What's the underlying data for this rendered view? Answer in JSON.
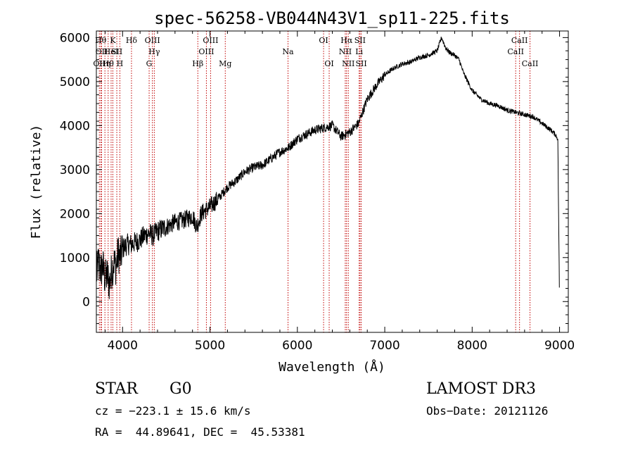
{
  "chart_data": {
    "type": "line",
    "title": "spec-56258-VB044N43V1_sp11-225.fits",
    "xlabel": "Wavelength (Å)",
    "ylabel": "Flux (relative)",
    "xlim": [
      3700,
      9100
    ],
    "ylim": [
      -700,
      6150
    ],
    "xticks": [
      4000,
      5000,
      6000,
      7000,
      8000,
      9000
    ],
    "yticks": [
      0,
      1000,
      2000,
      3000,
      4000,
      5000,
      6000
    ],
    "series": [
      {
        "name": "flux",
        "x": [
          3700,
          3725,
          3750,
          3775,
          3800,
          3825,
          3850,
          3875,
          3900,
          3925,
          3950,
          3975,
          4000,
          4050,
          4100,
          4150,
          4200,
          4250,
          4300,
          4350,
          4400,
          4500,
          4600,
          4700,
          4800,
          4850,
          4900,
          5000,
          5100,
          5200,
          5300,
          5400,
          5500,
          5600,
          5700,
          5800,
          5900,
          6000,
          6100,
          6200,
          6300,
          6400,
          6500,
          6550,
          6600,
          6650,
          6700,
          6800,
          6900,
          7000,
          7100,
          7200,
          7300,
          7400,
          7500,
          7600,
          7650,
          7700,
          7750,
          7800,
          7850,
          7900,
          8000,
          8100,
          8200,
          8300,
          8400,
          8500,
          8600,
          8700,
          8800,
          8900,
          8950,
          8980,
          9000
        ],
        "y": [
          600,
          900,
          700,
          800,
          500,
          600,
          400,
          700,
          900,
          800,
          1100,
          1000,
          1200,
          1300,
          1300,
          1350,
          1400,
          1500,
          1550,
          1500,
          1600,
          1700,
          1800,
          1850,
          1950,
          1700,
          2000,
          2150,
          2350,
          2600,
          2750,
          2950,
          3050,
          3100,
          3250,
          3400,
          3500,
          3700,
          3800,
          3900,
          3950,
          4000,
          3750,
          3800,
          3850,
          3950,
          4050,
          4600,
          4900,
          5150,
          5300,
          5400,
          5450,
          5550,
          5600,
          5700,
          6000,
          5750,
          5650,
          5600,
          5500,
          5200,
          4800,
          4600,
          4500,
          4450,
          4350,
          4300,
          4250,
          4200,
          4050,
          3900,
          3800,
          3700,
          -100
        ]
      }
    ],
    "lines": [
      {
        "wl": 3734,
        "label": "OII",
        "row": 3
      },
      {
        "wl": 3750,
        "label": "Hθ",
        "row": 1
      },
      {
        "wl": 3760,
        "label": "OII",
        "row": 2
      },
      {
        "wl": 3798,
        "label": "Hη",
        "row": 3
      },
      {
        "wl": 3835,
        "label": "Hθ",
        "row": 3
      },
      {
        "wl": 3869,
        "label": "HeI",
        "row": 2
      },
      {
        "wl": 3889,
        "label": "K",
        "row": 1
      },
      {
        "wl": 3934,
        "label": "SII",
        "row": 2
      },
      {
        "wl": 3969,
        "label": "H",
        "row": 3
      },
      {
        "wl": 4102,
        "label": "Hδ",
        "row": 1
      },
      {
        "wl": 4304,
        "label": "G",
        "row": 3
      },
      {
        "wl": 4341,
        "label": "OIII",
        "row": 1
      },
      {
        "wl": 4363,
        "label": "Hγ",
        "row": 2
      },
      {
        "wl": 4861,
        "label": "Hβ",
        "row": 3
      },
      {
        "wl": 4959,
        "label": "OIII",
        "row": 2
      },
      {
        "wl": 5007,
        "label": "OIII",
        "row": 1
      },
      {
        "wl": 5175,
        "label": "Mg",
        "row": 3
      },
      {
        "wl": 5893,
        "label": "Na",
        "row": 2
      },
      {
        "wl": 6300,
        "label": "OI",
        "row": 1
      },
      {
        "wl": 6364,
        "label": "OI",
        "row": 3
      },
      {
        "wl": 6548,
        "label": "NII",
        "row": 2
      },
      {
        "wl": 6563,
        "label": "Hα",
        "row": 1
      },
      {
        "wl": 6583,
        "label": "NII",
        "row": 3
      },
      {
        "wl": 6707,
        "label": "Li",
        "row": 2
      },
      {
        "wl": 6717,
        "label": "SII",
        "row": 1
      },
      {
        "wl": 6731,
        "label": "SII",
        "row": 3
      },
      {
        "wl": 8498,
        "label": "CaII",
        "row": 2
      },
      {
        "wl": 8542,
        "label": "CaII",
        "row": 1
      },
      {
        "wl": 8662,
        "label": "CaII",
        "row": 3
      }
    ]
  },
  "info": {
    "object_class": "STAR",
    "subclass": "G0",
    "survey": "LAMOST DR3",
    "cz": "cz = −223.1 ± 15.6 km/s",
    "obs_date": "Obs−Date: 20121126",
    "coords": "RA =  44.89641, DEC =  45.53381"
  },
  "colors": {
    "line": "#000000",
    "marker": "#c00000"
  }
}
